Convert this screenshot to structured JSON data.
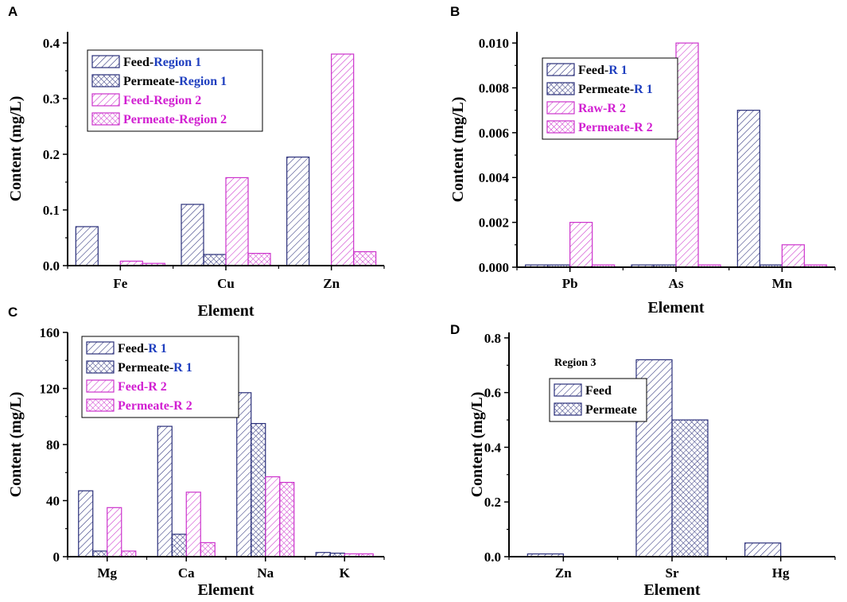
{
  "colors": {
    "navy": "#2a2f7a",
    "magenta": "#cc33cc",
    "blue_text": "#1f3fbf",
    "magenta_text": "#d11fd1",
    "black": "#000000"
  },
  "chart_data": [
    {
      "letter": "A",
      "type": "bar",
      "categories": [
        "Fe",
        "Cu",
        "Zn"
      ],
      "xlabel": "Element",
      "ylabel": "Content (mg/L)",
      "ylim": [
        0,
        0.42
      ],
      "yticks": [
        "0.0",
        "0.1",
        "0.2",
        "0.3",
        "0.4"
      ],
      "series": [
        {
          "name": "Feed-Region 1",
          "prefix": "Feed-",
          "suffix": "Region 1",
          "group": 1,
          "pattern": "diag",
          "values": [
            0.07,
            0.11,
            0.195
          ]
        },
        {
          "name": "Permeate-Region 1",
          "prefix": "Permeate-",
          "suffix": "Region 1",
          "group": 1,
          "pattern": "cross",
          "values": [
            0.0,
            0.02,
            0.0
          ]
        },
        {
          "name": "Feed-Region 2",
          "prefix": "Feed-",
          "suffix": "Region 2",
          "group": 2,
          "pattern": "diag",
          "values": [
            0.008,
            0.158,
            0.38
          ]
        },
        {
          "name": "Permeate-Region 2",
          "prefix": "Permeate-",
          "suffix": "Region 2",
          "group": 2,
          "pattern": "cross",
          "values": [
            0.004,
            0.022,
            0.025
          ]
        }
      ],
      "legend": "top-left"
    },
    {
      "letter": "B",
      "type": "bar",
      "categories": [
        "Pb",
        "As",
        "Mn"
      ],
      "xlabel": "Element",
      "ylabel": "Content (mg/L)",
      "ylim": [
        0,
        0.0105
      ],
      "yticks": [
        "0.000",
        "0.002",
        "0.004",
        "0.006",
        "0.008",
        "0.010"
      ],
      "series": [
        {
          "name": "Feed-R 1",
          "prefix": "Feed-",
          "suffix": "R 1",
          "group": 1,
          "pattern": "diag",
          "values": [
            0.0001,
            0.0001,
            0.007
          ]
        },
        {
          "name": "Permeate-R 1",
          "prefix": "Permeate-",
          "suffix": "R 1",
          "group": 1,
          "pattern": "cross",
          "values": [
            0.0001,
            0.0001,
            0.0001
          ]
        },
        {
          "name": "Raw-R 2",
          "prefix": "Raw-",
          "suffix": "R 2",
          "group": 2,
          "pattern": "diag",
          "values": [
            0.002,
            0.01,
            0.001
          ]
        },
        {
          "name": "Permeate-R 2",
          "prefix": "Permeate-",
          "suffix": "R 2",
          "group": 2,
          "pattern": "cross",
          "values": [
            0.0001,
            0.0001,
            0.0001
          ]
        }
      ],
      "legend": "top-left"
    },
    {
      "letter": "C",
      "type": "bar",
      "categories": [
        "Mg",
        "Ca",
        "Na",
        "K"
      ],
      "xlabel": "Element",
      "ylabel": "Content (mg/L)",
      "ylim": [
        0,
        160
      ],
      "yticks": [
        "0",
        "40",
        "80",
        "120",
        "160"
      ],
      "series": [
        {
          "name": "Feed-R 1",
          "prefix": "Feed-",
          "suffix": "R 1",
          "group": 1,
          "pattern": "diag",
          "values": [
            47,
            93,
            117,
            3
          ]
        },
        {
          "name": "Permeate-R 1",
          "prefix": "Permeate-",
          "suffix": "R 1",
          "group": 1,
          "pattern": "cross",
          "values": [
            4,
            16,
            95,
            2.5
          ]
        },
        {
          "name": "Feed-R 2",
          "prefix": "Feed-",
          "suffix": "R 2",
          "group": 2,
          "pattern": "diag",
          "values": [
            35,
            46,
            57,
            2
          ]
        },
        {
          "name": "Permeate-R 2",
          "prefix": "Permeate-",
          "suffix": "R 2",
          "group": 2,
          "pattern": "cross",
          "values": [
            4,
            10,
            53,
            2
          ]
        }
      ],
      "legend": "top-left"
    },
    {
      "letter": "D",
      "type": "bar",
      "categories": [
        "Zn",
        "Sr",
        "Hg"
      ],
      "xlabel": "Element",
      "ylabel": "Content (mg/L)",
      "ylim": [
        0,
        0.82
      ],
      "yticks": [
        "0.0",
        "0.2",
        "0.4",
        "0.6",
        "0.8"
      ],
      "annotation": "Region 3",
      "series": [
        {
          "name": "Feed",
          "prefix": "Feed",
          "suffix": "",
          "group": 3,
          "pattern": "diag",
          "values": [
            0.01,
            0.72,
            0.05
          ]
        },
        {
          "name": "Permeate",
          "prefix": "Permeate",
          "suffix": "",
          "group": 3,
          "pattern": "cross",
          "values": [
            0.0,
            0.5,
            0.0
          ]
        }
      ],
      "legend": "top-left"
    }
  ]
}
